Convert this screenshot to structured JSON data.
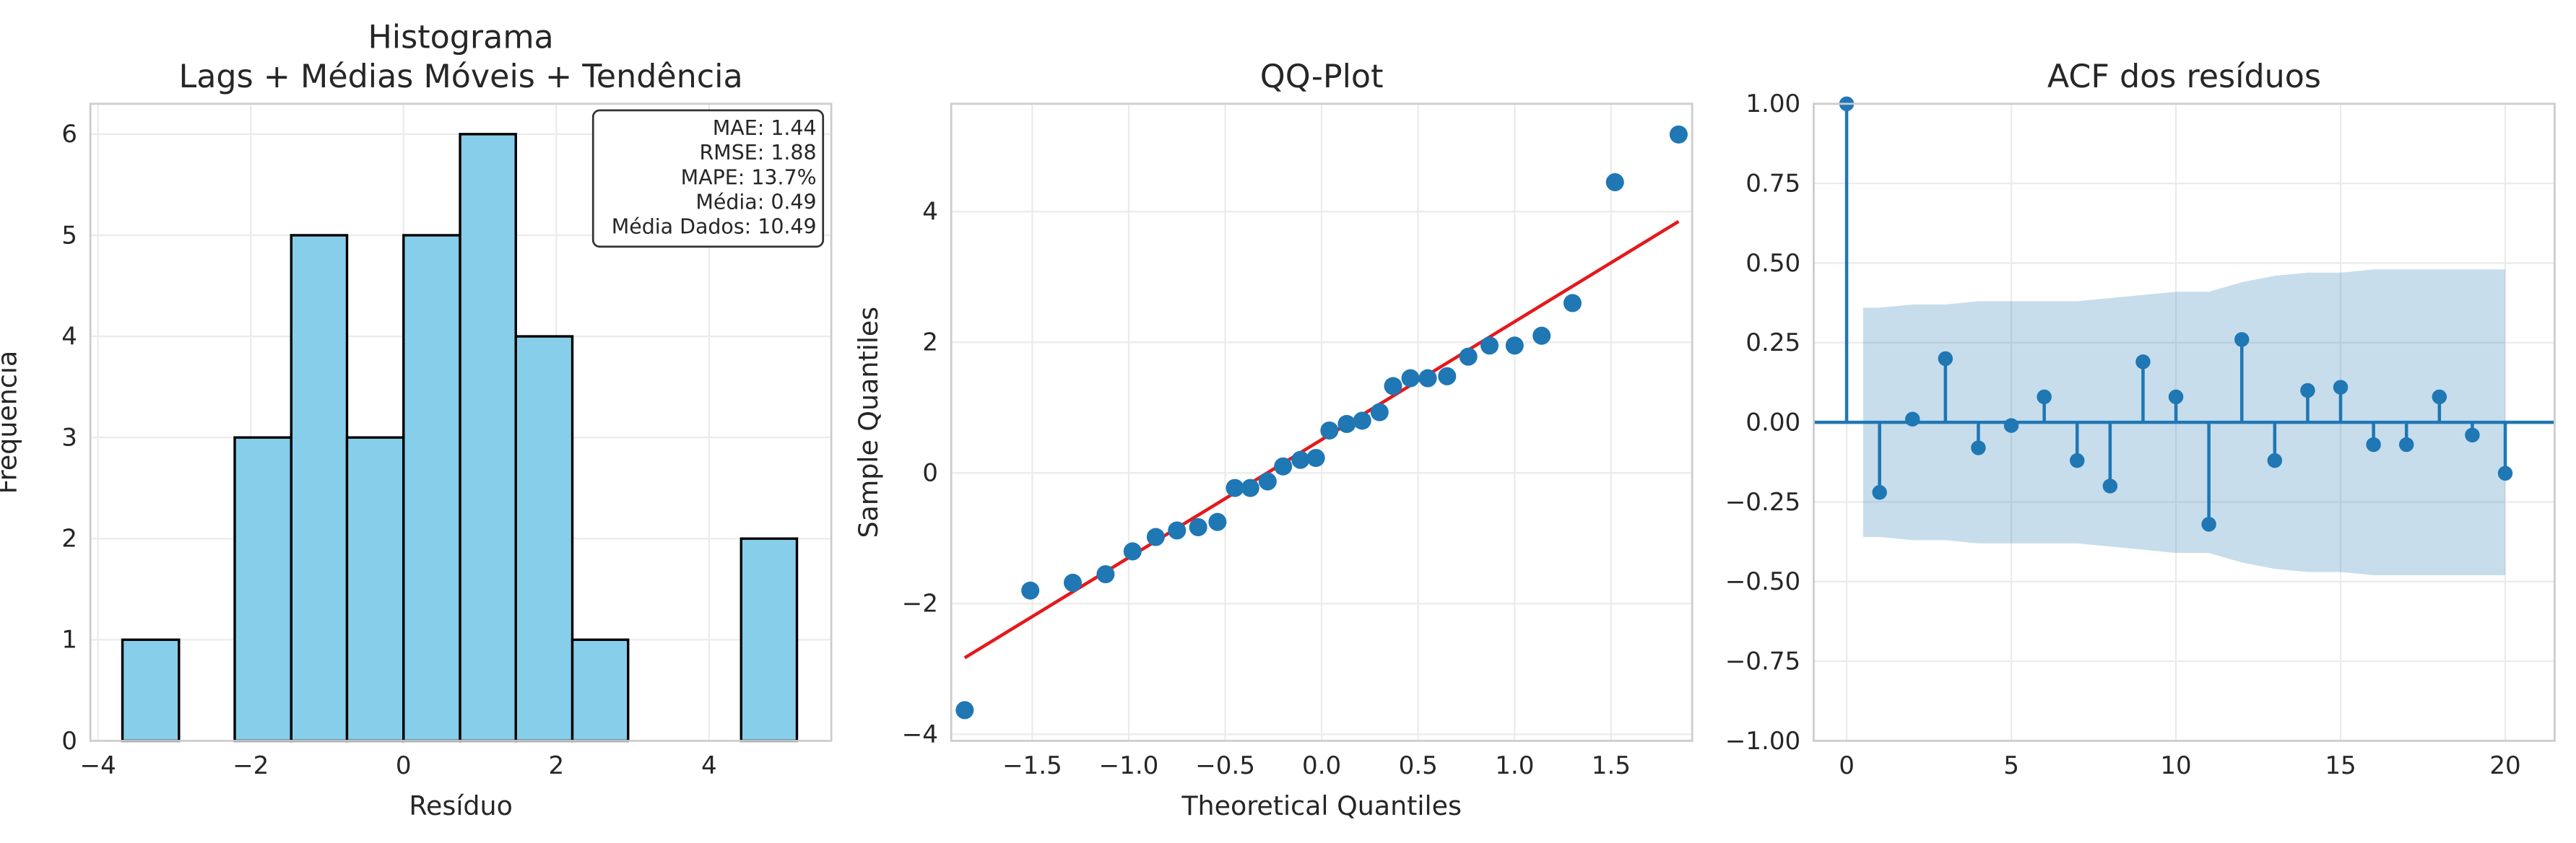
{
  "chart_data": [
    {
      "type": "histogram",
      "title": [
        "Histograma",
        "Lags + Médias Móveis + Tendência"
      ],
      "x_label": "Resíduo",
      "y_label": "Frequência",
      "bins": [
        -3.68,
        -2.94,
        -2.21,
        -1.47,
        -0.74,
        0.0,
        0.74,
        1.47,
        2.21,
        2.94,
        3.68,
        4.42,
        5.15
      ],
      "counts": [
        1,
        0,
        3,
        5,
        3,
        5,
        6,
        4,
        1,
        0,
        0,
        2
      ],
      "color": "#87ceeb",
      "edge_color": "#000000",
      "xlim": [
        -4.1,
        5.6
      ],
      "ylim": [
        0,
        6.3
      ],
      "xticks": [
        {
          "value": -4,
          "label": "−4"
        },
        {
          "value": -2,
          "label": "−2"
        },
        0,
        2,
        4
      ],
      "yticks": [
        0,
        1,
        2,
        3,
        4,
        5,
        6
      ],
      "annotation": [
        "MAE: 1.44",
        "RMSE: 1.88",
        "MAPE: 13.7%",
        "Média: 0.49",
        "Média Dados: 10.49"
      ],
      "grid": true
    },
    {
      "type": "qq",
      "title": [
        "QQ-Plot"
      ],
      "x_label": "Theoretical Quantiles",
      "y_label": "Sample Quantiles",
      "x": [
        -1.85,
        -1.51,
        -1.29,
        -1.12,
        -0.98,
        -0.86,
        -0.75,
        -0.64,
        -0.54,
        -0.45,
        -0.37,
        -0.28,
        -0.2,
        -0.11,
        -0.03,
        0.04,
        0.13,
        0.21,
        0.3,
        0.37,
        0.46,
        0.55,
        0.65,
        0.76,
        0.87,
        1.0,
        1.14,
        1.3,
        1.52,
        1.85
      ],
      "y": [
        -3.63,
        -1.8,
        -1.68,
        -1.55,
        -1.2,
        -0.98,
        -0.88,
        -0.83,
        -0.75,
        -0.23,
        -0.23,
        -0.13,
        0.1,
        0.2,
        0.23,
        0.65,
        0.75,
        0.8,
        0.93,
        1.33,
        1.45,
        1.45,
        1.48,
        1.78,
        1.95,
        1.95,
        2.1,
        2.6,
        4.45,
        5.18
      ],
      "color": "#1f77b4",
      "line": {
        "x": [
          -1.85,
          1.85
        ],
        "y": [
          -2.83,
          3.85
        ],
        "color": "#e31a1c"
      },
      "xlim": [
        -1.92,
        1.92
      ],
      "ylim": [
        -4.1,
        5.65
      ],
      "xticks": [
        {
          "value": -1.5,
          "label": "−1.5"
        },
        {
          "value": -1,
          "label": "−1.0"
        },
        {
          "value": -0.5,
          "label": "−0.5"
        },
        {
          "value": 0,
          "label": "0.0"
        },
        0.5,
        {
          "value": 1,
          "label": "1.0"
        },
        1.5
      ],
      "yticks": [
        {
          "value": -4,
          "label": "−4"
        },
        {
          "value": -2,
          "label": "−2"
        },
        0,
        2,
        4
      ],
      "grid": true
    },
    {
      "type": "stem",
      "title": [
        "ACF dos resíduos"
      ],
      "x": [
        0,
        1,
        2,
        3,
        4,
        5,
        6,
        7,
        8,
        9,
        10,
        11,
        12,
        13,
        14,
        15,
        16,
        17,
        18,
        19,
        20
      ],
      "values": [
        1.0,
        -0.22,
        0.01,
        0.2,
        -0.08,
        -0.01,
        0.08,
        -0.12,
        -0.2,
        0.19,
        0.08,
        -0.32,
        0.26,
        -0.12,
        0.1,
        0.11,
        -0.07,
        -0.07,
        0.08,
        -0.04,
        -0.16
      ],
      "color": "#1f77b4",
      "band": {
        "x": [
          0.5,
          1,
          2,
          3,
          4,
          5,
          6,
          7,
          8,
          9,
          10,
          11,
          12,
          13,
          14,
          15,
          16,
          17,
          18,
          19,
          20
        ],
        "upper": [
          0.36,
          0.36,
          0.37,
          0.37,
          0.38,
          0.38,
          0.38,
          0.38,
          0.39,
          0.4,
          0.41,
          0.41,
          0.44,
          0.46,
          0.47,
          0.47,
          0.48,
          0.48,
          0.48,
          0.48,
          0.48
        ],
        "lower": [
          -0.36,
          -0.36,
          -0.37,
          -0.37,
          -0.38,
          -0.38,
          -0.38,
          -0.38,
          -0.39,
          -0.4,
          -0.41,
          -0.41,
          -0.44,
          -0.46,
          -0.47,
          -0.47,
          -0.48,
          -0.48,
          -0.48,
          -0.48,
          -0.48
        ],
        "color": "#1f77b4"
      },
      "xlim": [
        -1,
        21.5
      ],
      "ylim": [
        -1,
        1
      ],
      "xticks": [
        0,
        5,
        10,
        15,
        20
      ],
      "yticks": [
        {
          "value": -1,
          "label": "−1.00"
        },
        {
          "value": -0.75,
          "label": "−0.75"
        },
        {
          "value": -0.5,
          "label": "−0.50"
        },
        {
          "value": -0.25,
          "label": "−0.25"
        },
        {
          "value": 0,
          "label": "0.00"
        },
        {
          "value": 0.25,
          "label": "0.25"
        },
        {
          "value": 0.5,
          "label": "0.50"
        },
        {
          "value": 0.75,
          "label": "0.75"
        },
        {
          "value": 1,
          "label": "1.00"
        }
      ],
      "grid": true
    }
  ]
}
